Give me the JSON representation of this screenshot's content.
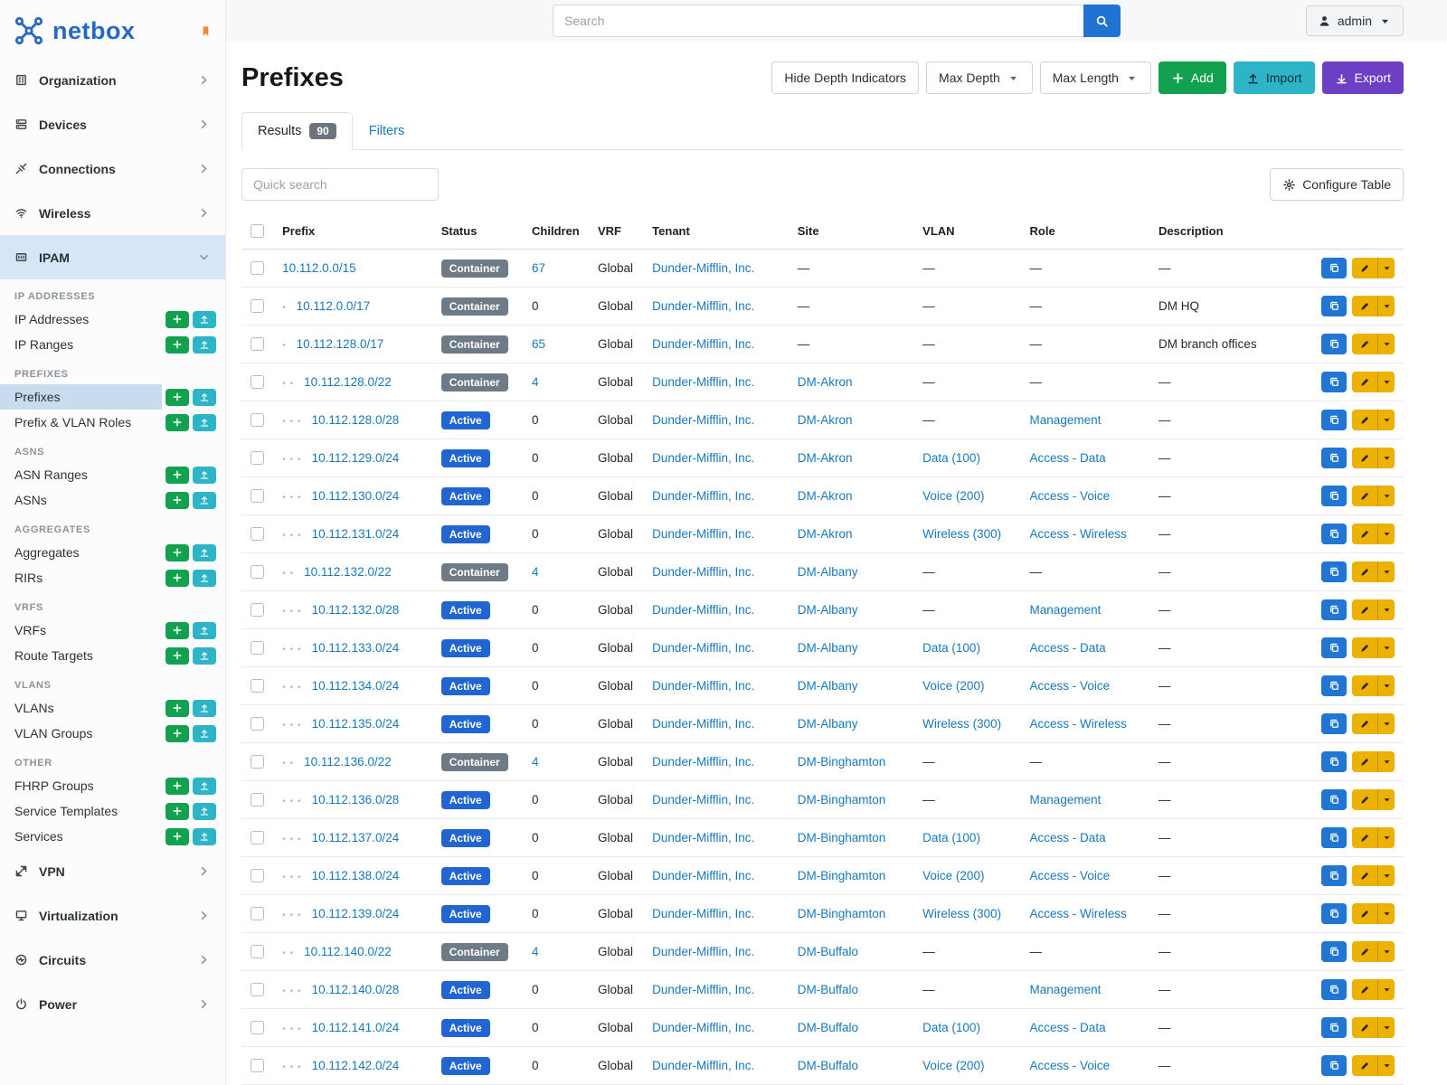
{
  "brand": {
    "name": "netbox"
  },
  "colors": {
    "logo_blue": "#2569c3",
    "pin_orange": "#ef8b34",
    "search_blue": "#2173d3",
    "add_green": "#12a14f",
    "import_teal": "#2db5c7",
    "export_purple": "#6d3fc4",
    "link_blue": "#1878be",
    "active_blue": "#2065d1",
    "container_gray": "#6e7a85",
    "copy_blue": "#2076d2",
    "edit_yellow": "#edb200"
  },
  "topbar": {
    "search_placeholder": "Search",
    "user": "admin"
  },
  "sidebar": {
    "top_items": [
      {
        "label": "Organization",
        "icon": "organization"
      },
      {
        "label": "Devices",
        "icon": "devices"
      },
      {
        "label": "Connections",
        "icon": "connections"
      },
      {
        "label": "Wireless",
        "icon": "wireless"
      }
    ],
    "ipam": {
      "label": "IPAM",
      "icon": "ipam"
    },
    "groups": [
      {
        "header": "IP ADDRESSES",
        "items": [
          "IP Addresses",
          "IP Ranges"
        ]
      },
      {
        "header": "PREFIXES",
        "items": [
          "Prefixes",
          "Prefix & VLAN Roles"
        ],
        "selected": "Prefixes"
      },
      {
        "header": "ASNS",
        "items": [
          "ASN Ranges",
          "ASNs"
        ]
      },
      {
        "header": "AGGREGATES",
        "items": [
          "Aggregates",
          "RIRs"
        ]
      },
      {
        "header": "VRFS",
        "items": [
          "VRFs",
          "Route Targets"
        ]
      },
      {
        "header": "VLANS",
        "items": [
          "VLANs",
          "VLAN Groups"
        ]
      },
      {
        "header": "OTHER",
        "items": [
          "FHRP Groups",
          "Service Templates",
          "Services"
        ]
      }
    ],
    "bottom_items": [
      {
        "label": "VPN",
        "icon": "vpn"
      },
      {
        "label": "Virtualization",
        "icon": "virtualization"
      },
      {
        "label": "Circuits",
        "icon": "circuits"
      },
      {
        "label": "Power",
        "icon": "power"
      }
    ]
  },
  "page": {
    "title": "Prefixes",
    "controls": {
      "hide_depth": "Hide Depth Indicators",
      "max_depth": "Max Depth",
      "max_length": "Max Length",
      "add": "Add",
      "import": "Import",
      "export": "Export"
    },
    "tabs": {
      "results": "Results",
      "results_count": "90",
      "filters": "Filters"
    },
    "quick_search_placeholder": "Quick search",
    "configure_table": "Configure Table"
  },
  "table": {
    "columns": [
      "Prefix",
      "Status",
      "Children",
      "VRF",
      "Tenant",
      "Site",
      "VLAN",
      "Role",
      "Description"
    ],
    "empty_cell": "—",
    "rows": [
      {
        "depth": 0,
        "prefix": "10.112.0.0/15",
        "status": "Container",
        "children": "67",
        "children_link": true,
        "vrf": "Global",
        "tenant": "Dunder-Mifflin, Inc.",
        "site": "—",
        "vlan": "—",
        "role": "—",
        "description": "—"
      },
      {
        "depth": 1,
        "prefix": "10.112.0.0/17",
        "status": "Container",
        "children": "0",
        "children_link": false,
        "vrf": "Global",
        "tenant": "Dunder-Mifflin, Inc.",
        "site": "—",
        "vlan": "—",
        "role": "—",
        "description": "DM HQ"
      },
      {
        "depth": 1,
        "prefix": "10.112.128.0/17",
        "status": "Container",
        "children": "65",
        "children_link": true,
        "vrf": "Global",
        "tenant": "Dunder-Mifflin, Inc.",
        "site": "—",
        "vlan": "—",
        "role": "—",
        "description": "DM branch offices"
      },
      {
        "depth": 2,
        "prefix": "10.112.128.0/22",
        "status": "Container",
        "children": "4",
        "children_link": true,
        "vrf": "Global",
        "tenant": "Dunder-Mifflin, Inc.",
        "site": "DM-Akron",
        "vlan": "—",
        "role": "—",
        "description": "—"
      },
      {
        "depth": 3,
        "prefix": "10.112.128.0/28",
        "status": "Active",
        "children": "0",
        "children_link": false,
        "vrf": "Global",
        "tenant": "Dunder-Mifflin, Inc.",
        "site": "DM-Akron",
        "vlan": "—",
        "role": "Management",
        "description": "—"
      },
      {
        "depth": 3,
        "prefix": "10.112.129.0/24",
        "status": "Active",
        "children": "0",
        "children_link": false,
        "vrf": "Global",
        "tenant": "Dunder-Mifflin, Inc.",
        "site": "DM-Akron",
        "vlan": "Data (100)",
        "role": "Access - Data",
        "description": "—"
      },
      {
        "depth": 3,
        "prefix": "10.112.130.0/24",
        "status": "Active",
        "children": "0",
        "children_link": false,
        "vrf": "Global",
        "tenant": "Dunder-Mifflin, Inc.",
        "site": "DM-Akron",
        "vlan": "Voice (200)",
        "role": "Access - Voice",
        "description": "—"
      },
      {
        "depth": 3,
        "prefix": "10.112.131.0/24",
        "status": "Active",
        "children": "0",
        "children_link": false,
        "vrf": "Global",
        "tenant": "Dunder-Mifflin, Inc.",
        "site": "DM-Akron",
        "vlan": "Wireless (300)",
        "role": "Access - Wireless",
        "description": "—"
      },
      {
        "depth": 2,
        "prefix": "10.112.132.0/22",
        "status": "Container",
        "children": "4",
        "children_link": true,
        "vrf": "Global",
        "tenant": "Dunder-Mifflin, Inc.",
        "site": "DM-Albany",
        "vlan": "—",
        "role": "—",
        "description": "—"
      },
      {
        "depth": 3,
        "prefix": "10.112.132.0/28",
        "status": "Active",
        "children": "0",
        "children_link": false,
        "vrf": "Global",
        "tenant": "Dunder-Mifflin, Inc.",
        "site": "DM-Albany",
        "vlan": "—",
        "role": "Management",
        "description": "—"
      },
      {
        "depth": 3,
        "prefix": "10.112.133.0/24",
        "status": "Active",
        "children": "0",
        "children_link": false,
        "vrf": "Global",
        "tenant": "Dunder-Mifflin, Inc.",
        "site": "DM-Albany",
        "vlan": "Data (100)",
        "role": "Access - Data",
        "description": "—"
      },
      {
        "depth": 3,
        "prefix": "10.112.134.0/24",
        "status": "Active",
        "children": "0",
        "children_link": false,
        "vrf": "Global",
        "tenant": "Dunder-Mifflin, Inc.",
        "site": "DM-Albany",
        "vlan": "Voice (200)",
        "role": "Access - Voice",
        "description": "—"
      },
      {
        "depth": 3,
        "prefix": "10.112.135.0/24",
        "status": "Active",
        "children": "0",
        "children_link": false,
        "vrf": "Global",
        "tenant": "Dunder-Mifflin, Inc.",
        "site": "DM-Albany",
        "vlan": "Wireless (300)",
        "role": "Access - Wireless",
        "description": "—"
      },
      {
        "depth": 2,
        "prefix": "10.112.136.0/22",
        "status": "Container",
        "children": "4",
        "children_link": true,
        "vrf": "Global",
        "tenant": "Dunder-Mifflin, Inc.",
        "site": "DM-Binghamton",
        "vlan": "—",
        "role": "—",
        "description": "—"
      },
      {
        "depth": 3,
        "prefix": "10.112.136.0/28",
        "status": "Active",
        "children": "0",
        "children_link": false,
        "vrf": "Global",
        "tenant": "Dunder-Mifflin, Inc.",
        "site": "DM-Binghamton",
        "vlan": "—",
        "role": "Management",
        "description": "—"
      },
      {
        "depth": 3,
        "prefix": "10.112.137.0/24",
        "status": "Active",
        "children": "0",
        "children_link": false,
        "vrf": "Global",
        "tenant": "Dunder-Mifflin, Inc.",
        "site": "DM-Binghamton",
        "vlan": "Data (100)",
        "role": "Access - Data",
        "description": "—"
      },
      {
        "depth": 3,
        "prefix": "10.112.138.0/24",
        "status": "Active",
        "children": "0",
        "children_link": false,
        "vrf": "Global",
        "tenant": "Dunder-Mifflin, Inc.",
        "site": "DM-Binghamton",
        "vlan": "Voice (200)",
        "role": "Access - Voice",
        "description": "—"
      },
      {
        "depth": 3,
        "prefix": "10.112.139.0/24",
        "status": "Active",
        "children": "0",
        "children_link": false,
        "vrf": "Global",
        "tenant": "Dunder-Mifflin, Inc.",
        "site": "DM-Binghamton",
        "vlan": "Wireless (300)",
        "role": "Access - Wireless",
        "description": "—"
      },
      {
        "depth": 2,
        "prefix": "10.112.140.0/22",
        "status": "Container",
        "children": "4",
        "children_link": true,
        "vrf": "Global",
        "tenant": "Dunder-Mifflin, Inc.",
        "site": "DM-Buffalo",
        "vlan": "—",
        "role": "—",
        "description": "—"
      },
      {
        "depth": 3,
        "prefix": "10.112.140.0/28",
        "status": "Active",
        "children": "0",
        "children_link": false,
        "vrf": "Global",
        "tenant": "Dunder-Mifflin, Inc.",
        "site": "DM-Buffalo",
        "vlan": "—",
        "role": "Management",
        "description": "—"
      },
      {
        "depth": 3,
        "prefix": "10.112.141.0/24",
        "status": "Active",
        "children": "0",
        "children_link": false,
        "vrf": "Global",
        "tenant": "Dunder-Mifflin, Inc.",
        "site": "DM-Buffalo",
        "vlan": "Data (100)",
        "role": "Access - Data",
        "description": "—"
      },
      {
        "depth": 3,
        "prefix": "10.112.142.0/24",
        "status": "Active",
        "children": "0",
        "children_link": false,
        "vrf": "Global",
        "tenant": "Dunder-Mifflin, Inc.",
        "site": "DM-Buffalo",
        "vlan": "Voice (200)",
        "role": "Access - Voice",
        "description": "—"
      }
    ]
  }
}
